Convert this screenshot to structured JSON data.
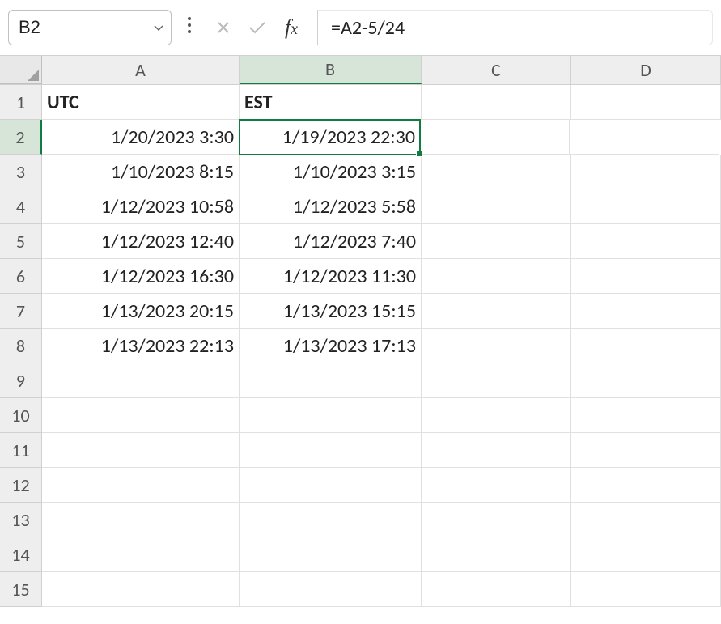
{
  "name_box": "B2",
  "formula": "=A2-5/24",
  "columns": [
    {
      "id": "A",
      "label": "A",
      "class": "colA",
      "selected": false
    },
    {
      "id": "B",
      "label": "B",
      "class": "colB",
      "selected": true
    },
    {
      "id": "C",
      "label": "C",
      "class": "colC",
      "selected": false
    },
    {
      "id": "D",
      "label": "D",
      "class": "colD",
      "selected": false
    }
  ],
  "rows": [
    {
      "n": 1,
      "selected": false,
      "cells": {
        "A": {
          "v": "UTC",
          "bold": true,
          "align": "left"
        },
        "B": {
          "v": "EST",
          "bold": true,
          "align": "left"
        }
      }
    },
    {
      "n": 2,
      "selected": true,
      "cells": {
        "A": {
          "v": "1/20/2023 3:30",
          "align": "right"
        },
        "B": {
          "v": "1/19/2023 22:30",
          "align": "right",
          "selected": true
        }
      }
    },
    {
      "n": 3,
      "selected": false,
      "cells": {
        "A": {
          "v": "1/10/2023 8:15",
          "align": "right"
        },
        "B": {
          "v": "1/10/2023 3:15",
          "align": "right"
        }
      }
    },
    {
      "n": 4,
      "selected": false,
      "cells": {
        "A": {
          "v": "1/12/2023 10:58",
          "align": "right"
        },
        "B": {
          "v": "1/12/2023 5:58",
          "align": "right"
        }
      }
    },
    {
      "n": 5,
      "selected": false,
      "cells": {
        "A": {
          "v": "1/12/2023 12:40",
          "align": "right"
        },
        "B": {
          "v": "1/12/2023 7:40",
          "align": "right"
        }
      }
    },
    {
      "n": 6,
      "selected": false,
      "cells": {
        "A": {
          "v": "1/12/2023 16:30",
          "align": "right"
        },
        "B": {
          "v": "1/12/2023 11:30",
          "align": "right"
        }
      }
    },
    {
      "n": 7,
      "selected": false,
      "cells": {
        "A": {
          "v": "1/13/2023 20:15",
          "align": "right"
        },
        "B": {
          "v": "1/13/2023 15:15",
          "align": "right"
        }
      }
    },
    {
      "n": 8,
      "selected": false,
      "cells": {
        "A": {
          "v": "1/13/2023 22:13",
          "align": "right"
        },
        "B": {
          "v": "1/13/2023 17:13",
          "align": "right"
        }
      }
    },
    {
      "n": 9,
      "selected": false,
      "cells": {}
    },
    {
      "n": 10,
      "selected": false,
      "cells": {}
    },
    {
      "n": 11,
      "selected": false,
      "cells": {}
    },
    {
      "n": 12,
      "selected": false,
      "cells": {}
    },
    {
      "n": 13,
      "selected": false,
      "cells": {}
    },
    {
      "n": 14,
      "selected": false,
      "cells": {}
    },
    {
      "n": 15,
      "selected": false,
      "cells": {}
    }
  ],
  "colors": {
    "selection_border": "#107c41",
    "selection_header_bg": "#d6e5d8",
    "header_bg": "#eeeeee",
    "grid_line": "#e0e0e0"
  }
}
